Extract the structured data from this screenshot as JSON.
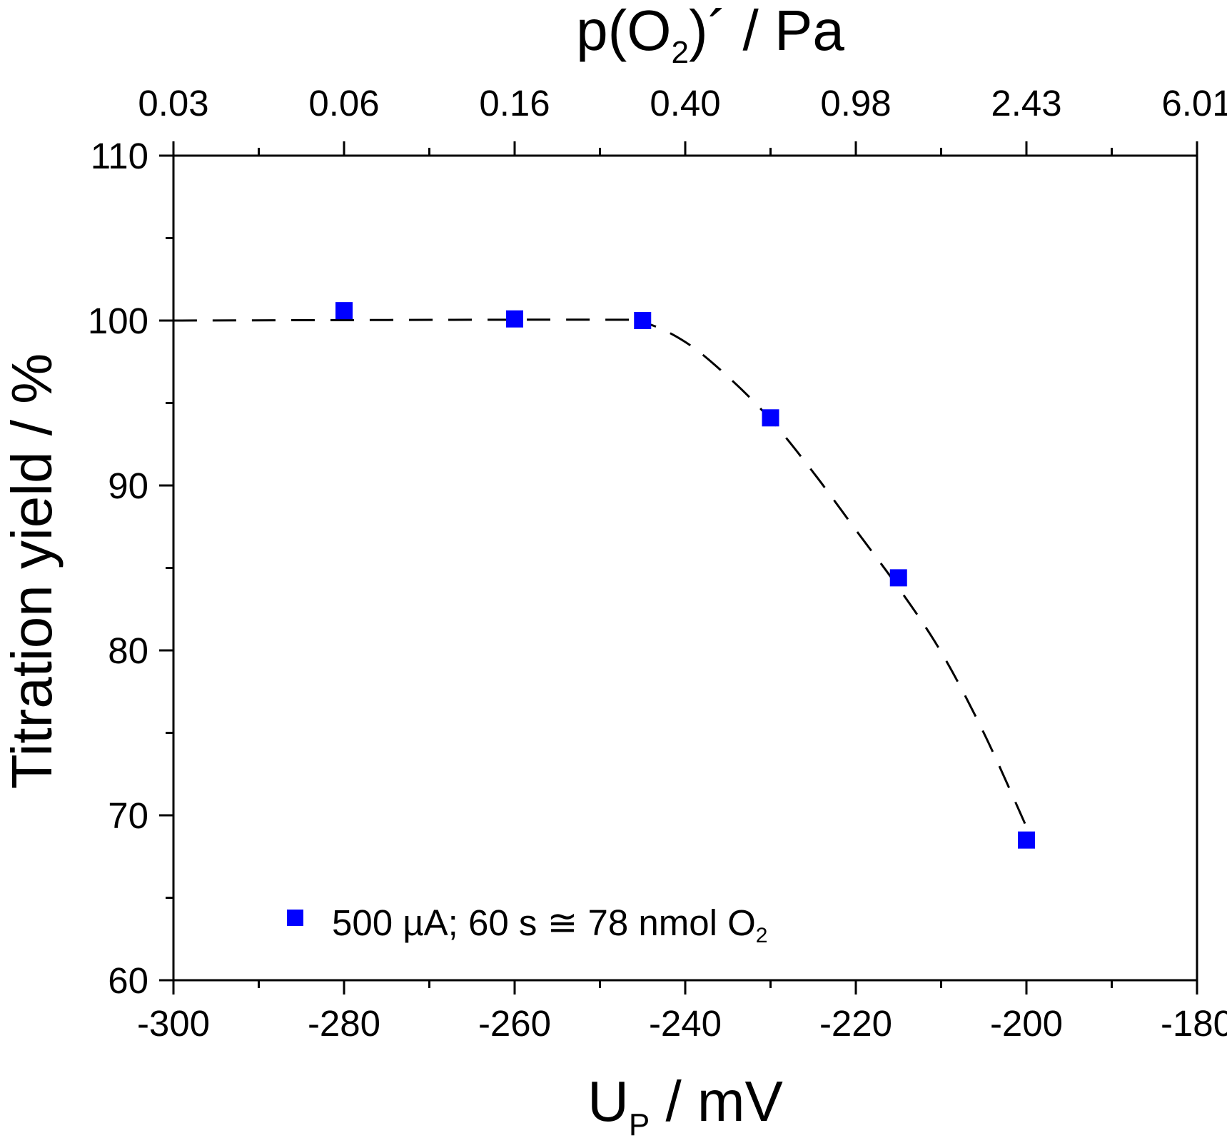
{
  "chart_data": {
    "type": "scatter",
    "xlabel": "U",
    "xlabel_sub": "P",
    "xlabel_unit": " / mV",
    "ylabel": "Titration yield / %",
    "top_xlabel_pre": "p(O",
    "top_xlabel_sub": "2",
    "top_xlabel_post": ")´ / Pa",
    "xlim": [
      -300,
      -180
    ],
    "ylim": [
      60,
      110
    ],
    "x_ticks": [
      "-300",
      "-280",
      "-260",
      "-240",
      "-220",
      "-200",
      "-180"
    ],
    "y_ticks": [
      "60",
      "70",
      "80",
      "90",
      "100",
      "110"
    ],
    "top_ticks": [
      "0.03",
      "0.06",
      "0.16",
      "0.40",
      "0.98",
      "2.43",
      "6.01"
    ],
    "grid": false,
    "legend_position": "bottom-left",
    "series": [
      {
        "name": "500 µA; 60 s ≅ 78 nmol O",
        "name_sub": "2",
        "color": "#0000ff",
        "marker": "square",
        "x": [
          -280,
          -260,
          -245,
          -230,
          -215,
          -200
        ],
        "y": [
          100.6,
          100.1,
          100.0,
          94.1,
          84.4,
          68.5
        ]
      }
    ],
    "fit_curve": {
      "style": "dashed",
      "color": "#000000",
      "x": [
        -300,
        -250,
        -245,
        -240,
        -235,
        -230,
        -225,
        -220,
        -215,
        -210,
        -205,
        -200
      ],
      "y": [
        100.0,
        100.05,
        99.9,
        98.7,
        96.6,
        94.0,
        90.8,
        87.3,
        83.8,
        79.9,
        75.0,
        69.3
      ]
    }
  }
}
